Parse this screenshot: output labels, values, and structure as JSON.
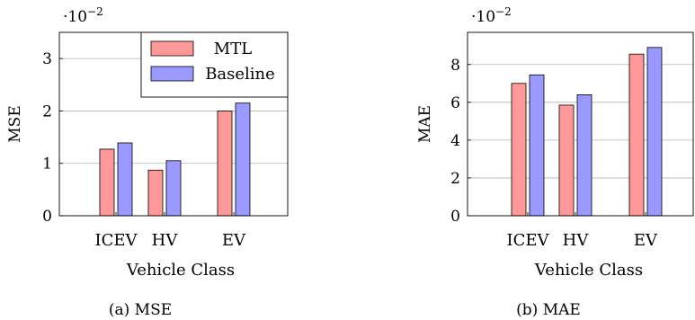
{
  "chart_data": [
    {
      "type": "bar",
      "panel": "(a) MSE",
      "ylabel": "MSE",
      "xlabel": "Vehicle Class",
      "scale_label": "·10",
      "scale_exp": "−2",
      "categories": [
        "ICEV",
        "HV",
        "EV"
      ],
      "ylim": [
        0,
        3.5
      ],
      "yticks": [
        "0",
        "1",
        "2",
        "3"
      ],
      "ytick_values": [
        0,
        1,
        2,
        3
      ],
      "grid": true,
      "legend_position": "top-right",
      "series": [
        {
          "name": "MTL",
          "values": [
            1.27,
            0.87,
            2.0
          ]
        },
        {
          "name": "Baseline",
          "values": [
            1.39,
            1.05,
            2.15
          ]
        }
      ]
    },
    {
      "type": "bar",
      "panel": "(b) MAE",
      "ylabel": "MAE",
      "xlabel": "Vehicle Class",
      "scale_label": "·10",
      "scale_exp": "−2",
      "categories": [
        "ICEV",
        "HV",
        "EV"
      ],
      "ylim": [
        0,
        9.7
      ],
      "yticks": [
        "0",
        "2",
        "4",
        "6",
        "8"
      ],
      "ytick_values": [
        0,
        2,
        4,
        6,
        8
      ],
      "grid": true,
      "legend_position": "none",
      "series": [
        {
          "name": "MTL",
          "values": [
            7.0,
            5.85,
            8.55
          ]
        },
        {
          "name": "Baseline",
          "values": [
            7.45,
            6.4,
            8.9
          ]
        }
      ]
    }
  ],
  "colors": {
    "mtl_fill": "#ff9999",
    "baseline_fill": "#9999ff",
    "stroke": "#000000",
    "grid": "#b3b3b3"
  }
}
